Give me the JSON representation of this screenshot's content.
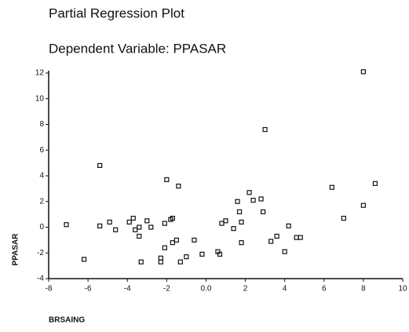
{
  "chart_data": {
    "type": "scatter",
    "title": "Partial Regression Plot",
    "subtitle": "Dependent Variable: PPASAR",
    "x_label": "BRSAING",
    "y_label": "PPASAR",
    "color": "#111111",
    "xlim": [
      -8,
      10
    ],
    "ylim": [
      -4,
      12
    ],
    "xticks": [
      -8,
      -6,
      -4,
      -2,
      {
        "value": 0,
        "label": "0.0"
      },
      2,
      4,
      6,
      8,
      10
    ],
    "yticks": [
      -4,
      -2,
      0,
      2,
      4,
      6,
      8,
      10,
      12
    ],
    "x": [
      -7.1,
      -6.2,
      -5.4,
      -5.4,
      -4.9,
      -4.6,
      -3.9,
      -3.7,
      -3.6,
      -3.4,
      -3.4,
      -3.3,
      -3.0,
      -2.8,
      -2.3,
      -2.3,
      -2.1,
      -2.1,
      -2.0,
      -1.8,
      -1.7,
      -1.7,
      -1.5,
      -1.4,
      -1.3,
      -1.0,
      -0.6,
      -0.2,
      0.6,
      0.7,
      0.8,
      1.0,
      1.4,
      1.6,
      1.7,
      1.8,
      1.8,
      2.2,
      2.4,
      2.8,
      2.9,
      3.0,
      3.3,
      3.6,
      4.0,
      4.2,
      4.6,
      4.8,
      6.4,
      7.0,
      8.0,
      8.0,
      8.6
    ],
    "values": [
      0.2,
      -2.5,
      4.8,
      0.1,
      0.4,
      -0.2,
      0.4,
      0.7,
      -0.2,
      0.0,
      -0.7,
      -2.7,
      0.5,
      0.0,
      -2.7,
      -2.4,
      -1.6,
      0.3,
      3.7,
      0.6,
      0.7,
      -1.2,
      -1.0,
      3.2,
      -2.7,
      -2.3,
      -1.0,
      -2.1,
      -1.9,
      -2.1,
      0.3,
      0.5,
      -0.1,
      2.0,
      1.2,
      -1.2,
      0.4,
      2.7,
      2.1,
      2.2,
      1.2,
      7.6,
      -1.1,
      -0.7,
      -1.9,
      0.1,
      -0.8,
      -0.8,
      3.1,
      0.7,
      1.7,
      12.1,
      3.4
    ]
  }
}
